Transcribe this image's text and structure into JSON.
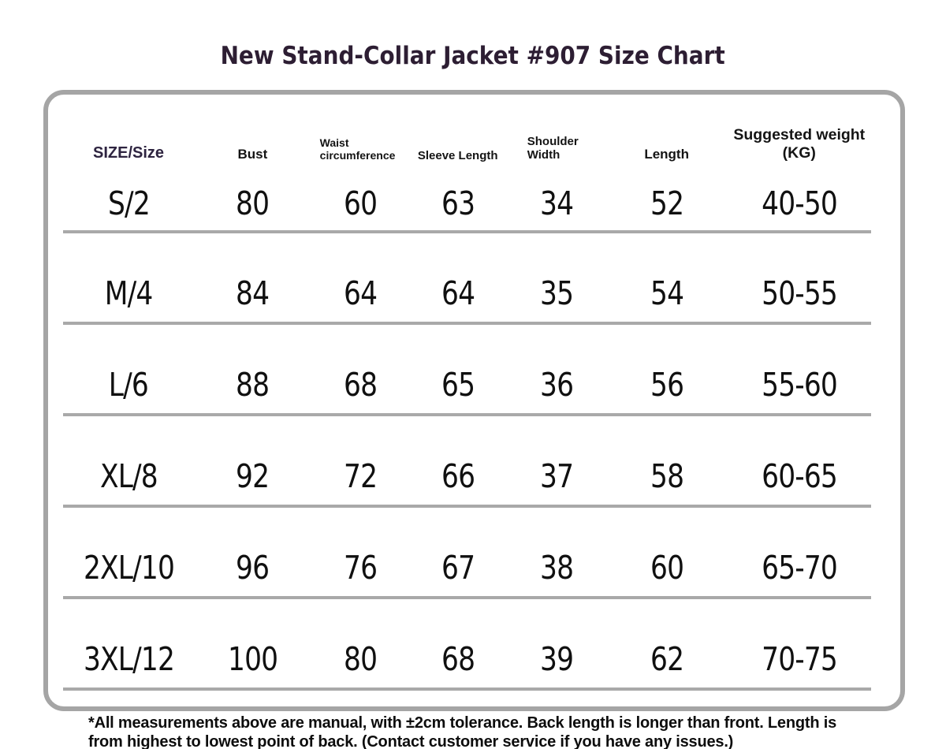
{
  "chart_data": {
    "type": "table",
    "title": "New Stand-Collar Jacket #907 Size Chart",
    "columns": [
      "SIZE/Size",
      "Waist",
      "circumference",
      "Bust",
      "Sleeve Length",
      "Shoulder",
      "Width",
      "Length",
      "Suggested weight (KG)"
    ],
    "rows": [
      [
        "S/2",
        "80",
        "60",
        "63",
        "34",
        "52",
        "40-50"
      ],
      [
        "M/4",
        "84",
        "64",
        "64",
        "35",
        "54",
        "50-55"
      ],
      [
        "L/6",
        "88",
        "68",
        "65",
        "36",
        "56",
        "55-60"
      ],
      [
        "XL/8",
        "92",
        "72",
        "66",
        "37",
        "58",
        "60-65"
      ],
      [
        "2XL/10",
        "96",
        "76",
        "67",
        "38",
        "60",
        "65-70"
      ],
      [
        "3XL/12",
        "100",
        "80",
        "68",
        "39",
        "62",
        "70-75"
      ]
    ],
    "layout_hints": {
      "header_two_line_columns": [
        "Waist circumference",
        "Shoulder Width"
      ],
      "row_separators": "horizontal gray lines under each data row",
      "panel": "rounded gray-bordered rectangle"
    }
  },
  "footnote": "*All measurements above are manual, with ±2cm tolerance. Back length is longer than front. Length is from highest to lowest point of back. (Contact customer service if you have any issues.)",
  "colors": {
    "background": "#ffffff",
    "title_text": "#2d1e33",
    "size_header_text": "#2e2440",
    "body_text": "#101010",
    "panel_border": "#a5a5a5",
    "row_line": "#a9a9a9"
  }
}
